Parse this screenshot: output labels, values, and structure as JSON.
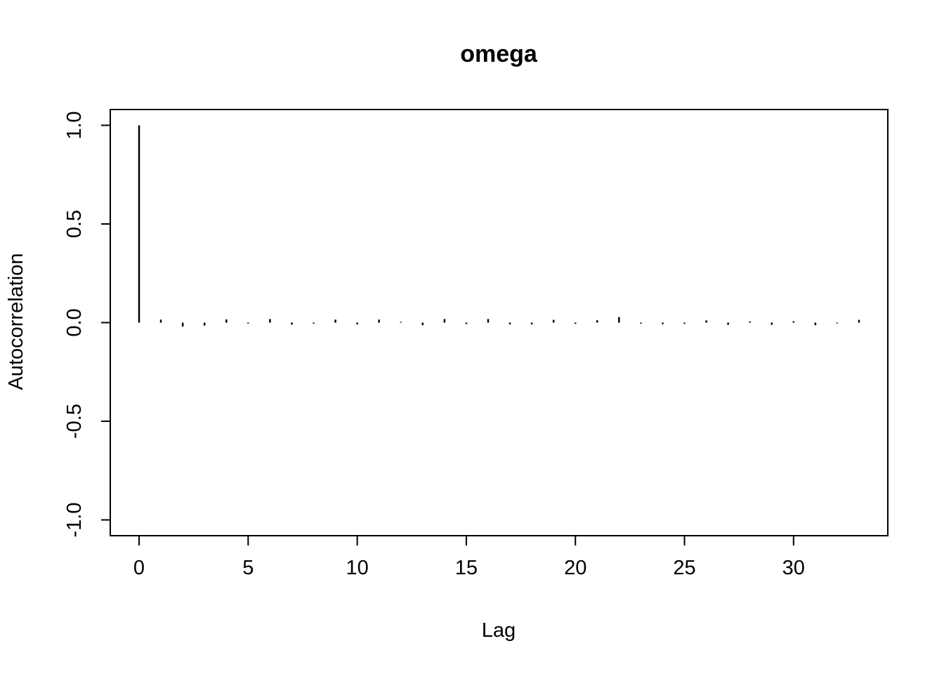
{
  "chart_data": {
    "type": "bar",
    "subtype": "autocorrelation-stick-plot",
    "title": "omega",
    "xlabel": "Lag",
    "ylabel": "Autocorrelation",
    "x": [
      0,
      1,
      2,
      3,
      4,
      5,
      6,
      7,
      8,
      9,
      10,
      11,
      12,
      13,
      14,
      15,
      16,
      17,
      18,
      19,
      20,
      21,
      22,
      23,
      24,
      25,
      26,
      27,
      28,
      29,
      30,
      31,
      32,
      33
    ],
    "values": [
      1.0,
      0.015,
      -0.02,
      -0.015,
      0.016,
      -0.005,
      0.018,
      -0.01,
      -0.005,
      0.015,
      -0.009,
      0.015,
      0.004,
      -0.013,
      0.018,
      -0.007,
      0.018,
      -0.009,
      -0.009,
      0.014,
      -0.006,
      0.012,
      0.028,
      -0.005,
      -0.008,
      -0.006,
      0.011,
      -0.011,
      0.006,
      -0.011,
      0.007,
      -0.013,
      -0.004,
      0.014
    ],
    "x_ticks": [
      0,
      5,
      10,
      15,
      20,
      25,
      30
    ],
    "y_ticks": [
      -1.0,
      -0.5,
      0.0,
      0.5,
      1.0
    ],
    "y_tick_labels": [
      "-1.0",
      "-0.5",
      "0.0",
      "0.5",
      "1.0"
    ],
    "xlim": [
      0,
      33
    ],
    "ylim": [
      -1,
      1
    ],
    "grid": false,
    "legend": false,
    "colors": {
      "bar": "#000000",
      "axis": "#000000",
      "text": "#000000",
      "background": "#ffffff"
    }
  }
}
